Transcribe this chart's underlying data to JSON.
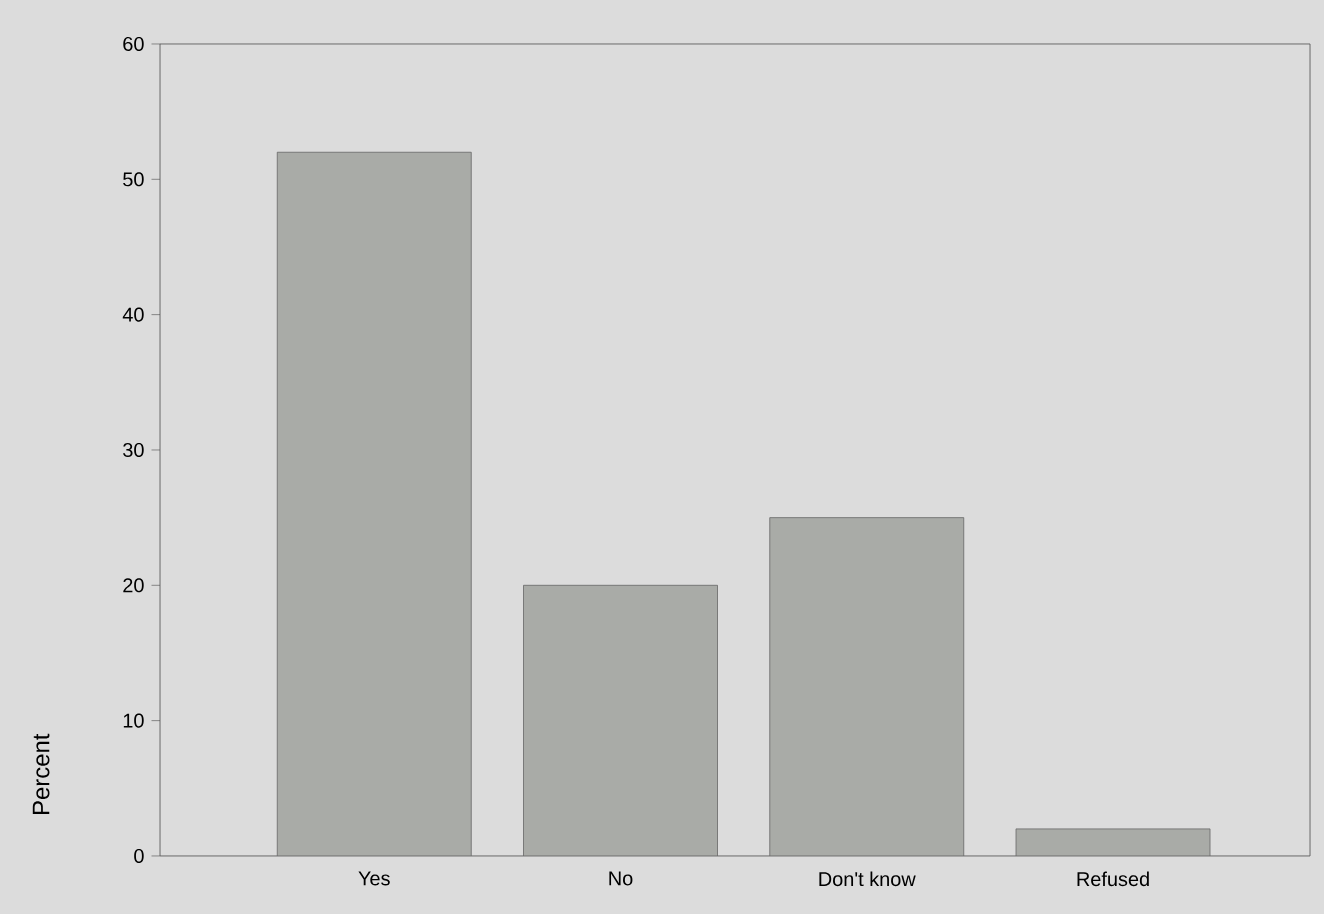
{
  "chart_data": {
    "type": "bar",
    "ylabel": "Percent",
    "categories": [
      "Yes",
      "No",
      "Don't know",
      "Refused"
    ],
    "values": [
      52,
      20,
      25,
      2
    ],
    "color": "#a9aba7",
    "ylim": [
      0,
      60
    ],
    "yticks": [
      0,
      10,
      20,
      30,
      40,
      50,
      60
    ],
    "grid": false
  }
}
